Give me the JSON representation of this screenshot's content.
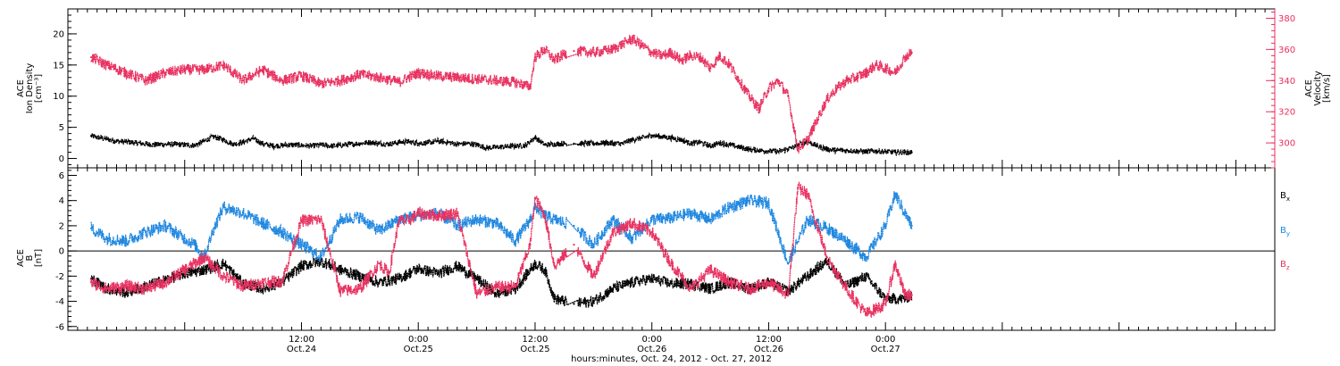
{
  "chart_data": {
    "type": "scatter",
    "xlabel": "hours:minutes, Oct. 24, 2012 - Oct. 27, 2012",
    "x_range_hours": [
      -12,
      112
    ],
    "x_ticks": [
      {
        "hour": 12,
        "time": "12:00",
        "date": "Oct.24"
      },
      {
        "hour": 24,
        "time": "0:00",
        "date": "Oct.25"
      },
      {
        "hour": 36,
        "time": "12:00",
        "date": "Oct.25"
      },
      {
        "hour": 48,
        "time": "0:00",
        "date": "Oct.26"
      },
      {
        "hour": 60,
        "time": "12:00",
        "date": "Oct.26"
      },
      {
        "hour": 72,
        "time": "0:00",
        "date": "Oct.27"
      }
    ],
    "panels": [
      {
        "id": "density-velocity",
        "ylabel_lines": [
          "ACE",
          "Ion Density",
          "[cm⁻³]"
        ],
        "ylim": [
          -1.5,
          24
        ],
        "yticks": [
          0,
          5,
          10,
          15,
          20
        ],
        "y2label_lines": [
          "ACE",
          "Velocity",
          "[km/s]"
        ],
        "y2lim": [
          284,
          386
        ],
        "y2ticks": [
          300,
          320,
          340,
          360,
          380
        ],
        "y2color": "#e8305f",
        "series": [
          {
            "name": "Ion Density",
            "axis": "left",
            "color": "#000000",
            "x": [
              -9.6,
              -7,
              -5,
              -3,
              -1,
              0,
              1,
              2,
              3,
              4,
              5,
              6,
              7,
              8,
              9,
              10,
              11,
              12,
              13,
              14,
              15,
              16,
              17,
              18,
              19,
              20,
              21,
              22,
              23,
              24,
              25,
              26,
              27,
              28,
              29,
              30,
              31,
              32,
              33,
              34,
              35,
              36,
              37,
              38,
              39,
              40,
              42,
              43,
              44,
              45,
              46,
              47,
              48,
              49,
              50,
              51,
              52,
              53,
              54,
              55,
              56,
              57,
              58,
              59,
              60,
              61,
              62,
              63,
              64,
              65,
              66,
              67,
              68,
              69,
              70,
              71,
              72,
              73,
              74,
              74.7
            ],
            "y": [
              3.6,
              2.8,
              2.5,
              2.2,
              2.3,
              2.2,
              2.1,
              2.8,
              3.5,
              3.0,
              2.3,
              2.6,
              3.2,
              2.4,
              2.0,
              2.1,
              2.2,
              2.1,
              2.0,
              2.2,
              2.0,
              2.1,
              2.3,
              2.4,
              2.6,
              2.4,
              2.3,
              2.6,
              2.7,
              2.4,
              2.5,
              2.8,
              2.6,
              2.3,
              2.4,
              2.2,
              1.7,
              1.8,
              1.9,
              2.0,
              2.1,
              3.4,
              2.2,
              2.3,
              2.4,
              2.4,
              2.4,
              2.5,
              2.4,
              2.4,
              3.0,
              3.3,
              3.7,
              3.5,
              3.3,
              3.0,
              2.4,
              2.6,
              2.0,
              2.5,
              2.2,
              1.8,
              1.5,
              1.3,
              1.2,
              1.1,
              1.5,
              2.1,
              2.7,
              2.0,
              1.5,
              1.3,
              1.3,
              1.2,
              1.1,
              1.2,
              1.1,
              1.0,
              1.0,
              1.0
            ]
          },
          {
            "name": "Velocity",
            "axis": "right",
            "color": "#e8305f",
            "x": [
              -9.6,
              -8,
              -6,
              -4,
              -2,
              0,
              2,
              4,
              6,
              8,
              10,
              12,
              14,
              16,
              18,
              20,
              22,
              24,
              26,
              28,
              30,
              32,
              34,
              35.5,
              36,
              37,
              38,
              39,
              40,
              42,
              44,
              46,
              48,
              49,
              50,
              51,
              52,
              53,
              54,
              55,
              56,
              57,
              58,
              59,
              60,
              61,
              62,
              63,
              64,
              65,
              66,
              67,
              68,
              69,
              70,
              71,
              72,
              73,
              74,
              74.7
            ],
            "y": [
              355,
              350,
              345,
              340,
              345,
              347,
              347,
              350,
              340,
              347,
              340,
              343,
              338,
              340,
              344,
              342,
              339,
              345,
              343,
              342,
              341,
              340,
              339,
              336,
              355,
              360,
              353,
              357,
              359,
              358,
              360,
              367,
              358,
              356,
              358,
              353,
              356,
              355,
              348,
              356,
              350,
              340,
              330,
              322,
              335,
              340,
              330,
              296,
              302,
              315,
              328,
              335,
              340,
              342,
              345,
              350,
              348,
              345,
              355,
              358
            ]
          }
        ]
      },
      {
        "id": "magnetic-field",
        "ylabel_lines": [
          "ACE",
          "B",
          "[nT]"
        ],
        "ylim": [
          -6.3,
          6.6
        ],
        "yticks": [
          -6,
          -4,
          -2,
          0,
          2,
          4,
          6
        ],
        "series": [
          {
            "name": "Bx",
            "color": "#000000",
            "x": [
              -9.6,
              -8,
              -6,
              -4,
              -2,
              0,
              2,
              4,
              6,
              8,
              10,
              12,
              14,
              16,
              18,
              20,
              22,
              24,
              26,
              28,
              30,
              32,
              34,
              36,
              37,
              38,
              40,
              42,
              44,
              46,
              48,
              50,
              52,
              54,
              56,
              58,
              60,
              62,
              64,
              66,
              68,
              70,
              72,
              74,
              74.7
            ],
            "y": [
              -2.2,
              -3.0,
              -3.3,
              -2.8,
              -2.3,
              -1.8,
              -1.5,
              -1.0,
              -2.6,
              -3.0,
              -2.5,
              -1.2,
              -0.8,
              -1.5,
              -2.0,
              -2.5,
              -2.2,
              -1.4,
              -1.8,
              -1.2,
              -2.2,
              -3.4,
              -3.0,
              -1.0,
              -1.5,
              -3.8,
              -4.2,
              -4.0,
              -3.0,
              -2.5,
              -2.2,
              -2.6,
              -2.6,
              -3.0,
              -2.5,
              -3.0,
              -2.5,
              -3.2,
              -2.0,
              -0.8,
              -2.8,
              -2.0,
              -3.8,
              -3.8,
              -3.5
            ]
          },
          {
            "name": "By",
            "color": "#1f87e0",
            "x": [
              -9.6,
              -8,
              -6,
              -4,
              -2,
              0,
              1,
              2,
              3,
              4,
              6,
              8,
              10,
              12,
              14,
              16,
              18,
              20,
              22,
              24,
              26,
              28,
              30,
              32,
              34,
              35.5,
              36,
              37,
              38,
              40,
              42,
              44,
              46,
              48,
              50,
              52,
              54,
              56,
              58,
              60,
              62,
              64,
              66,
              68,
              70,
              72,
              73,
              74,
              74.7
            ],
            "y": [
              1.8,
              1.0,
              0.8,
              1.5,
              2.0,
              1.0,
              0.5,
              -0.5,
              1.8,
              3.5,
              3.0,
              2.2,
              1.5,
              0.5,
              -0.5,
              2.5,
              2.7,
              1.6,
              2.5,
              2.8,
              3.0,
              2.0,
              2.5,
              2.2,
              0.8,
              2.5,
              3.5,
              2.8,
              2.5,
              2.0,
              0.5,
              2.5,
              1.0,
              2.5,
              2.6,
              3.0,
              2.5,
              3.5,
              4.0,
              3.8,
              -1.0,
              2.5,
              1.8,
              0.8,
              -0.5,
              2.0,
              4.5,
              3.0,
              2.0
            ]
          },
          {
            "name": "Bz",
            "color": "#e8305f",
            "x": [
              -9.6,
              -8,
              -6,
              -4,
              -2,
              0,
              2,
              4,
              6,
              8,
              10,
              12,
              14,
              16,
              18,
              20,
              21,
              22,
              23,
              24,
              26,
              28,
              30,
              32,
              34,
              35.5,
              36,
              37,
              38,
              40,
              42,
              44,
              46,
              48,
              50,
              52,
              54,
              56,
              58,
              60,
              62,
              63,
              64,
              66,
              68,
              70,
              72,
              73,
              74,
              74.7
            ],
            "y": [
              -2.5,
              -3.0,
              -2.8,
              -3.0,
              -2.5,
              -1.5,
              -0.5,
              -2.0,
              -2.8,
              -2.5,
              -2.4,
              2.4,
              2.5,
              -3.2,
              -3.0,
              -1.0,
              -1.8,
              2.4,
              2.4,
              3.0,
              2.8,
              3.0,
              -3.4,
              -2.9,
              -2.8,
              0.5,
              4.2,
              2.8,
              -1.2,
              0.5,
              -2.0,
              1.5,
              2.2,
              1.5,
              -1.0,
              -3.0,
              -1.5,
              -2.5,
              -3.0,
              -2.5,
              -3.5,
              5.0,
              4.5,
              -0.5,
              -3.0,
              -5.0,
              -4.2,
              -1.0,
              -3.5,
              -3.5
            ]
          }
        ]
      }
    ],
    "legend": [
      {
        "main": "B",
        "sub": "x",
        "color": "#000000"
      },
      {
        "main": "B",
        "sub": "y",
        "color": "#1f87e0"
      },
      {
        "main": "B",
        "sub": "z",
        "color": "#e8305f"
      }
    ],
    "zero_line": true
  }
}
